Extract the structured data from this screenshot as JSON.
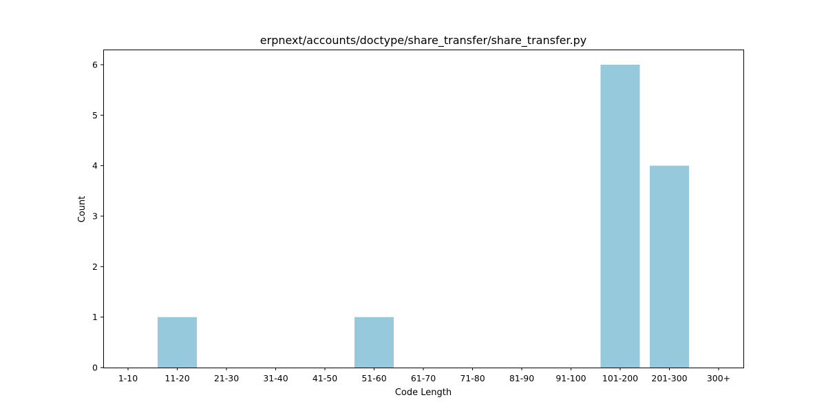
{
  "chart_data": {
    "type": "bar",
    "title": "erpnext/accounts/doctype/share_transfer/share_transfer.py",
    "xlabel": "Code Length",
    "ylabel": "Count",
    "categories": [
      "1-10",
      "11-20",
      "21-30",
      "31-40",
      "41-50",
      "51-60",
      "61-70",
      "71-80",
      "81-90",
      "91-100",
      "101-200",
      "201-300",
      "300+"
    ],
    "values": [
      0,
      1,
      0,
      0,
      0,
      1,
      0,
      0,
      0,
      0,
      6,
      4,
      0
    ],
    "ylim": [
      0,
      6.3
    ],
    "yticks": [
      0,
      1,
      2,
      3,
      4,
      5,
      6
    ],
    "bar_color": "#96c9dc",
    "grid": false,
    "legend": "none"
  }
}
